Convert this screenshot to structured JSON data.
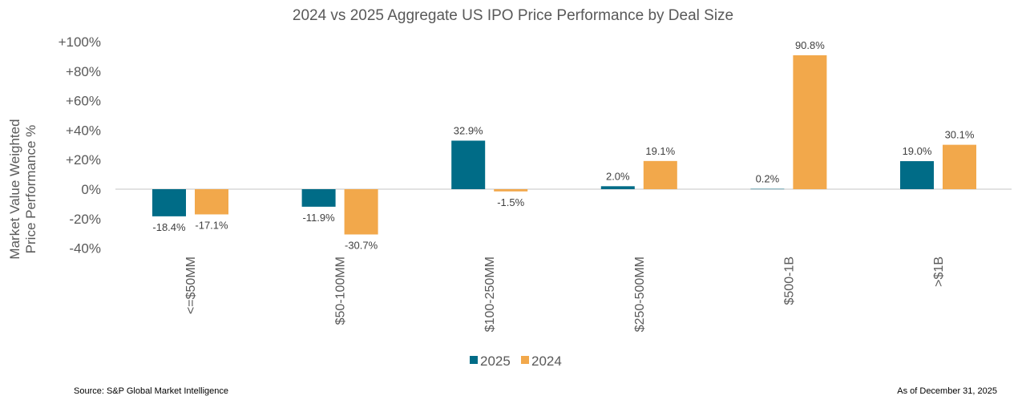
{
  "chart_data": {
    "type": "bar",
    "title": "2024 vs 2025 Aggregate US IPO Price Performance by Deal Size",
    "ylabel": [
      "Market Value Weighted",
      "Price Performance %"
    ],
    "xlabel": "",
    "categories": [
      "<=$50MM",
      "$50-100MM",
      "$100-250MM",
      "$250-500MM",
      "$500-1B",
      ">$1B"
    ],
    "series": [
      {
        "name": "2025",
        "color": "#006c87",
        "values": [
          -18.4,
          -11.9,
          32.9,
          2.0,
          0.2,
          19.0
        ],
        "labels": [
          "-18.4%",
          "-11.9%",
          "32.9%",
          "2.0%",
          "0.2%",
          "19.0%"
        ]
      },
      {
        "name": "2024",
        "color": "#f2a84b",
        "values": [
          -17.1,
          -30.7,
          -1.5,
          19.1,
          90.8,
          30.1
        ],
        "labels": [
          "-17.1%",
          "-30.7%",
          "-1.5%",
          "19.1%",
          "90.8%",
          "30.1%"
        ]
      }
    ],
    "ylim": [
      -40,
      100
    ],
    "yticks": [
      100,
      80,
      60,
      40,
      20,
      0,
      -20,
      -40
    ],
    "ytick_labels": [
      "+100%",
      "+80%",
      "+60%",
      "+40%",
      "+20%",
      "0%",
      "-20%",
      "-40%"
    ],
    "grid": false,
    "legend_position": "bottom"
  },
  "footer": {
    "source": "Source: S&P Global Market Intelligence",
    "date": "As of December 31, 2025"
  }
}
